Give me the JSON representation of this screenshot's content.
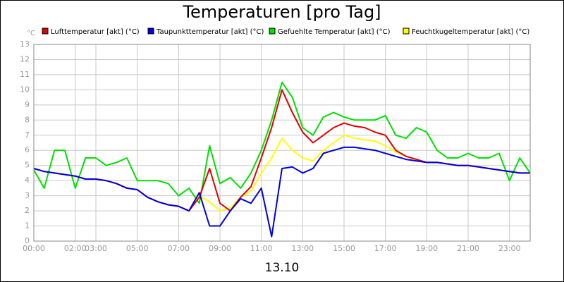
{
  "chart_data": {
    "type": "line",
    "title": "Temperaturen [pro Tag]",
    "xlabel": "13.10",
    "ylabel": "°C",
    "x": [
      0,
      0.5,
      1,
      1.5,
      2,
      2.5,
      3,
      3.5,
      4,
      4.5,
      5,
      5.5,
      6,
      6.5,
      7,
      7.5,
      8,
      8.5,
      9,
      9.5,
      10,
      10.5,
      11,
      11.5,
      12,
      12.5,
      13,
      13.5,
      14,
      14.5,
      15,
      15.5,
      16,
      16.5,
      17,
      17.5,
      18,
      18.5,
      19,
      19.5,
      20,
      20.5,
      21,
      21.5,
      22,
      22.5,
      23,
      23.5,
      24
    ],
    "series": [
      {
        "name": "Lufttemperatur [akt] (°C)",
        "color": "#e00000",
        "values": [
          4.8,
          4.6,
          4.5,
          4.4,
          4.3,
          4.1,
          4.1,
          4.0,
          3.8,
          3.5,
          3.4,
          2.9,
          2.6,
          2.4,
          2.3,
          2.0,
          2.9,
          4.8,
          2.5,
          2.0,
          2.9,
          3.6,
          5.5,
          7.5,
          10.0,
          8.5,
          7.2,
          6.5,
          7.0,
          7.5,
          7.8,
          7.6,
          7.5,
          7.2,
          7.0,
          6.0,
          5.6,
          5.4,
          5.2,
          5.2,
          5.1,
          5.0,
          5.0,
          4.9,
          4.8,
          4.7,
          4.6,
          4.5,
          4.5
        ]
      },
      {
        "name": "Taupunkttemperatur [akt] (°C)",
        "color": "#0000e0",
        "values": [
          4.8,
          4.6,
          4.5,
          4.4,
          4.3,
          4.1,
          4.1,
          4.0,
          3.8,
          3.5,
          3.4,
          2.9,
          2.6,
          2.4,
          2.3,
          2.0,
          3.2,
          1.0,
          1.0,
          2.0,
          2.8,
          2.5,
          3.5,
          0.3,
          4.8,
          4.9,
          4.5,
          4.8,
          5.8,
          6.0,
          6.2,
          6.2,
          6.1,
          6.0,
          5.8,
          5.6,
          5.4,
          5.3,
          5.2,
          5.2,
          5.1,
          5.0,
          5.0,
          4.9,
          4.8,
          4.7,
          4.6,
          4.5,
          4.5
        ]
      },
      {
        "name": "Gefuehlte Temperatur [akt] (°C)",
        "color": "#00e000",
        "values": [
          4.7,
          3.5,
          6.0,
          6.0,
          3.5,
          5.5,
          5.5,
          5.0,
          5.2,
          5.5,
          4.0,
          4.0,
          4.0,
          3.8,
          3.0,
          3.5,
          2.5,
          6.3,
          3.8,
          4.2,
          3.5,
          4.5,
          6.0,
          8.0,
          10.5,
          9.5,
          7.5,
          7.0,
          8.2,
          8.5,
          8.2,
          8.0,
          8.0,
          8.0,
          8.3,
          7.0,
          6.8,
          7.5,
          7.2,
          6.0,
          5.5,
          5.5,
          5.8,
          5.5,
          5.5,
          5.8,
          4.0,
          5.5,
          4.5
        ]
      },
      {
        "name": "Feuchtkugeltemperatur [akt] (°C)",
        "color": "#ffff00",
        "values": [
          4.8,
          4.6,
          4.5,
          4.4,
          4.3,
          4.1,
          4.1,
          4.0,
          3.8,
          3.5,
          3.4,
          2.9,
          2.6,
          2.4,
          2.3,
          2.0,
          3.0,
          2.6,
          2.0,
          2.2,
          2.9,
          3.3,
          4.5,
          5.5,
          6.8,
          6.0,
          5.5,
          5.3,
          6.0,
          6.5,
          7.0,
          6.8,
          6.7,
          6.6,
          6.3,
          5.9,
          5.6,
          5.4,
          5.2,
          5.2,
          5.1,
          5.0,
          5.0,
          4.9,
          4.8,
          4.7,
          4.6,
          4.5,
          4.5
        ]
      }
    ],
    "xlim": [
      0,
      24
    ],
    "xticks": [
      {
        "value": 0,
        "label": "00:00"
      },
      {
        "value": 2,
        "label": "02:00"
      },
      {
        "value": 3,
        "label": "03:00"
      },
      {
        "value": 5,
        "label": "05:00"
      },
      {
        "value": 7,
        "label": "07:00"
      },
      {
        "value": 9,
        "label": "09:00"
      },
      {
        "value": 11,
        "label": "11:00"
      },
      {
        "value": 13,
        "label": "13:00"
      },
      {
        "value": 15,
        "label": "15:00"
      },
      {
        "value": 17,
        "label": "17:00"
      },
      {
        "value": 19,
        "label": "19:00"
      },
      {
        "value": 21,
        "label": "21:00"
      },
      {
        "value": 23,
        "label": "23:00"
      }
    ],
    "ylim": [
      0,
      13
    ],
    "yticks": [
      0,
      1,
      2,
      3,
      4,
      5,
      6,
      7,
      8,
      9,
      10,
      11,
      12,
      13
    ],
    "grid": true
  }
}
